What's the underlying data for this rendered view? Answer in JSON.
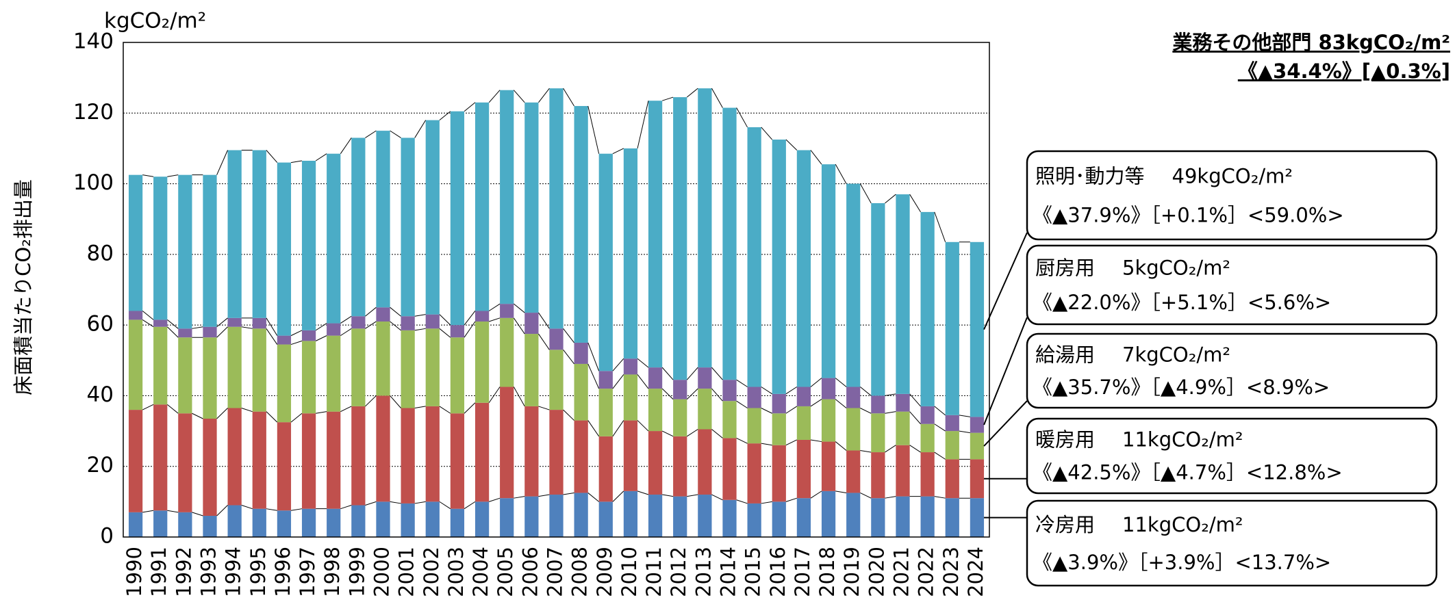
{
  "chart_data": {
    "type": "stacked_bar",
    "title": "業務その他部門 83kgCO₂/m²",
    "subtitle": "《▲34.4%》[▲0.3%]",
    "y_unit": "kgCO₂/m²",
    "y_label": "床面積当たりCO₂排出量",
    "categories": [
      "1990",
      "1991",
      "1992",
      "1993",
      "1994",
      "1995",
      "1996",
      "1997",
      "1998",
      "1999",
      "2000",
      "2001",
      "2002",
      "2003",
      "2004",
      "2005",
      "2006",
      "2007",
      "2008",
      "2009",
      "2010",
      "2011",
      "2012",
      "2013",
      "2014",
      "2015",
      "2016",
      "2017",
      "2018",
      "2019",
      "2020",
      "2021",
      "2022",
      "2023",
      "2024"
    ],
    "ylim": [
      0,
      140
    ],
    "yticks": [
      0,
      20,
      40,
      60,
      80,
      100,
      120,
      140
    ],
    "grid": true,
    "series": [
      {
        "name": "冷房用",
        "color": "#4f81bd",
        "callout": [
          "11kgCO₂/m²",
          "《▲3.9%》［+3.9%］<13.7%>"
        ],
        "values": [
          7,
          7.5,
          7,
          6,
          9,
          8,
          7.5,
          8,
          8,
          9,
          10,
          9.5,
          10,
          8,
          10,
          11,
          11.5,
          12,
          12.5,
          10,
          13,
          12,
          11.5,
          12,
          10.5,
          9.5,
          10,
          11,
          13,
          12.5,
          11,
          11.5,
          11.5,
          11,
          11
        ]
      },
      {
        "name": "暖房用",
        "color": "#c0504d",
        "callout": [
          "11kgCO₂/m²",
          "《▲42.5%》［▲4.7%］<12.8%>"
        ],
        "values": [
          29,
          30,
          28,
          27.5,
          27.5,
          27.5,
          25,
          27,
          27.5,
          28,
          30,
          27,
          27,
          27,
          28,
          31.5,
          25.5,
          24,
          20.5,
          18.5,
          20,
          18,
          17,
          18.5,
          17.5,
          17,
          16,
          16.5,
          14,
          12,
          13,
          14.5,
          12.5,
          11,
          11
        ]
      },
      {
        "name": "給湯用",
        "color": "#9bbb59",
        "callout": [
          "7kgCO₂/m²",
          "《▲35.7%》［▲4.9%］<8.9%>"
        ],
        "values": [
          25.5,
          22,
          21.5,
          23,
          23,
          23.5,
          22,
          20.5,
          21.5,
          22,
          21,
          22,
          22,
          21.5,
          23,
          19.5,
          20.5,
          17,
          16,
          13.5,
          13,
          12,
          10.5,
          11.5,
          10.5,
          10,
          9,
          9.5,
          12,
          12,
          11,
          9.5,
          8,
          8,
          7.5
        ]
      },
      {
        "name": "厨房用",
        "color": "#8064a2",
        "callout": [
          "5kgCO₂/m²",
          "《▲22.0%》［+5.1%］<5.6%>"
        ],
        "values": [
          2.5,
          2,
          2.5,
          3,
          2.5,
          3,
          2.5,
          3,
          3.5,
          3.5,
          4,
          4,
          4,
          3.5,
          3,
          4,
          6,
          6,
          6,
          5,
          4.5,
          6,
          5.5,
          6,
          6,
          6,
          5.5,
          5.5,
          6,
          6,
          5,
          5,
          5,
          4.5,
          4.5
        ]
      },
      {
        "name": "照明･動力等",
        "color": "#4bacc6",
        "callout": [
          "49kgCO₂/m²",
          "《▲37.9%》［+0.1%］<59.0%>"
        ],
        "values": [
          38.5,
          40.5,
          43.5,
          43,
          47.5,
          47.5,
          49,
          48,
          48,
          50.5,
          50,
          50.5,
          55,
          60.5,
          59,
          60.5,
          59.5,
          68,
          67,
          61.5,
          59.5,
          75.5,
          80,
          79,
          77,
          73.5,
          72,
          67,
          60.5,
          57.5,
          54.5,
          56.5,
          55,
          49,
          49.5
        ]
      }
    ]
  }
}
